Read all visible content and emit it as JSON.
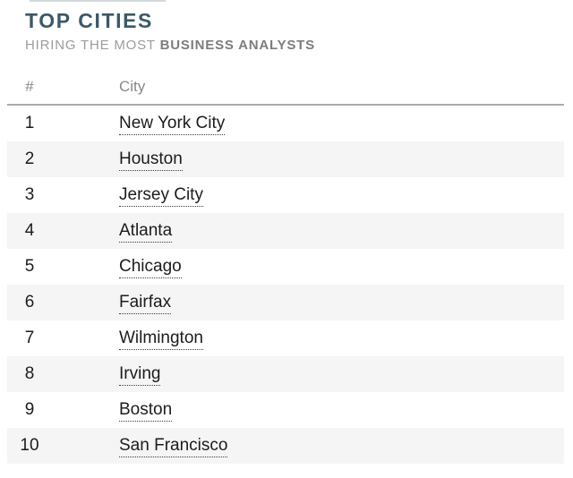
{
  "page": {
    "title": "TOP CITIES",
    "subtitle": {
      "light": "HIRING THE MOST",
      "bold": "BUSINESS ANALYSTS"
    }
  },
  "table": {
    "columns": [
      {
        "key": "rank",
        "label": "#"
      },
      {
        "key": "city",
        "label": "City"
      }
    ],
    "rows": [
      {
        "rank": "1",
        "city": "New York City"
      },
      {
        "rank": "2",
        "city": "Houston"
      },
      {
        "rank": "3",
        "city": "Jersey City"
      },
      {
        "rank": "4",
        "city": "Atlanta"
      },
      {
        "rank": "5",
        "city": "Chicago"
      },
      {
        "rank": "6",
        "city": "Fairfax"
      },
      {
        "rank": "7",
        "city": "Wilmington"
      },
      {
        "rank": "8",
        "city": "Irving"
      },
      {
        "rank": "9",
        "city": "Boston"
      },
      {
        "rank": "10",
        "city": "San Francisco"
      }
    ]
  },
  "colors": {
    "title_text": "#3b5967",
    "subtitle_light": "#9c9c9c",
    "subtitle_bold": "#7d7d7d",
    "header_text": "#888888",
    "header_border": "#ababab",
    "row_alt_bg": "#f5f5f5",
    "body_text": "#1c1c1c",
    "link_underline": "#3c3c3c"
  },
  "chart_data": {
    "type": "table",
    "title": "TOP CITIES",
    "subtitle": "HIRING THE MOST BUSINESS ANALYSTS",
    "columns": [
      "#",
      "City"
    ],
    "rows": [
      [
        1,
        "New York City"
      ],
      [
        2,
        "Houston"
      ],
      [
        3,
        "Jersey City"
      ],
      [
        4,
        "Atlanta"
      ],
      [
        5,
        "Chicago"
      ],
      [
        6,
        "Fairfax"
      ],
      [
        7,
        "Wilmington"
      ],
      [
        8,
        "Irving"
      ],
      [
        9,
        "Boston"
      ],
      [
        10,
        "San Francisco"
      ]
    ]
  }
}
